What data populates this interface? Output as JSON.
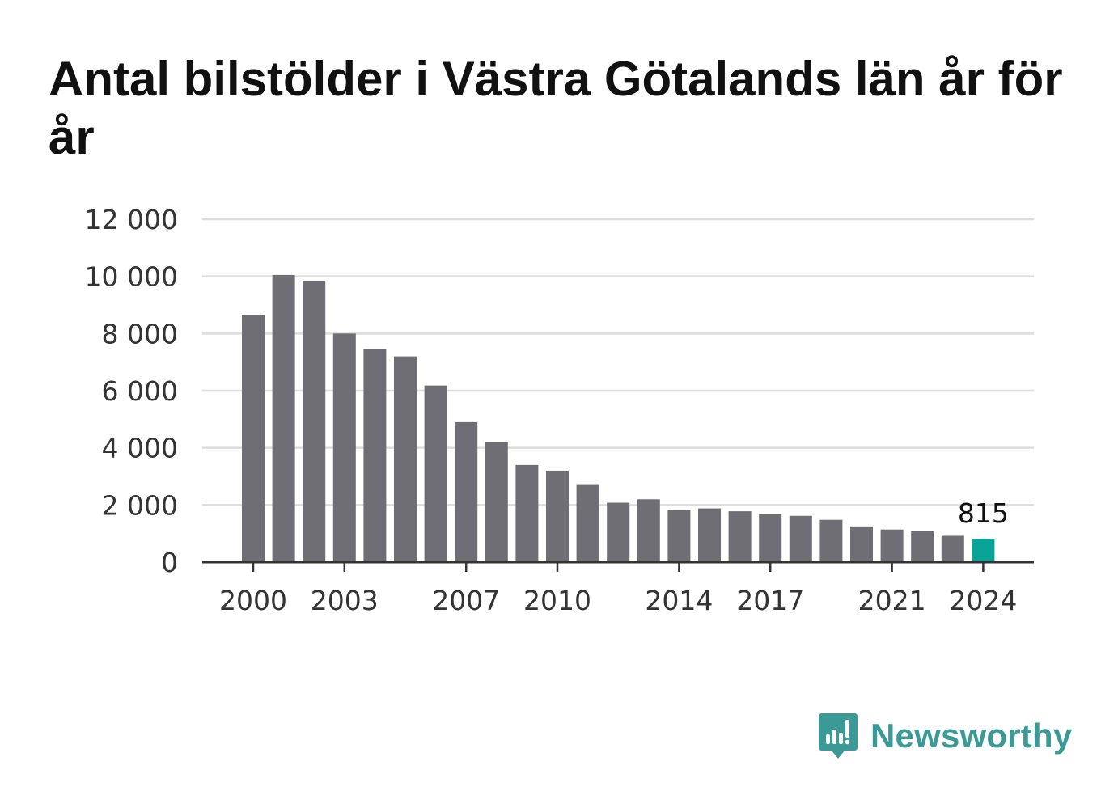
{
  "title": "Antal bilstölder i Västra Götalands län år för år",
  "colors": {
    "bar": "#6f6e74",
    "highlight": "#0aa398",
    "grid": "#dddddd",
    "axis": "#333333",
    "brand": "#3c9a96"
  },
  "chart_data": {
    "type": "bar",
    "title": "Antal bilstölder i Västra Götalands län år för år",
    "xlabel": "",
    "ylabel": "",
    "categories": [
      "2000",
      "2001",
      "2002",
      "2003",
      "2004",
      "2005",
      "2006",
      "2007",
      "2008",
      "2009",
      "2010",
      "2011",
      "2012",
      "2013",
      "2014",
      "2015",
      "2016",
      "2017",
      "2018",
      "2019",
      "2020",
      "2021",
      "2022",
      "2023",
      "2024"
    ],
    "values": [
      8650,
      10050,
      9850,
      8000,
      7450,
      7200,
      6180,
      4900,
      4200,
      3400,
      3200,
      2700,
      2080,
      2200,
      1820,
      1880,
      1780,
      1680,
      1620,
      1480,
      1250,
      1140,
      1080,
      920,
      815
    ],
    "ylim": [
      0,
      12000
    ],
    "yticks": [
      0,
      2000,
      4000,
      6000,
      8000,
      10000,
      12000
    ],
    "ytick_labels": [
      "0",
      "2 000",
      "4 000",
      "6 000",
      "8 000",
      "10 000",
      "12 000"
    ],
    "xtick_labels": [
      "2000",
      "2003",
      "2007",
      "2010",
      "2014",
      "2017",
      "2021",
      "2024"
    ],
    "highlight_category": "2024",
    "data_labels": [
      {
        "category": "2024",
        "text": "815"
      }
    ],
    "grid": true
  },
  "logo": {
    "text": "Newsworthy"
  }
}
